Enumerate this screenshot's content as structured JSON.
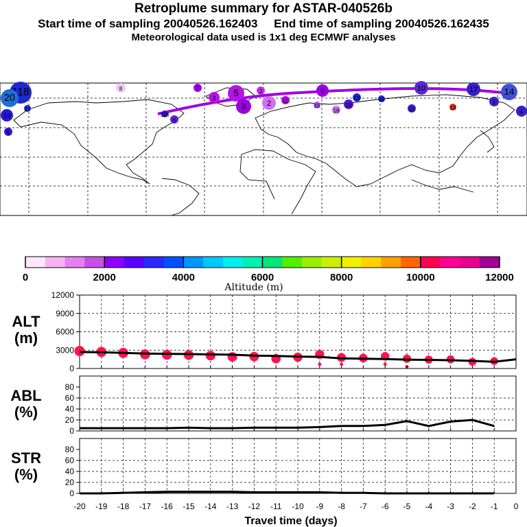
{
  "titles": {
    "main": "Retroplume summary for ASTAR-040526b",
    "start": "Start time of sampling 20040526.162403",
    "end": "End time of sampling 20040526.162435",
    "meteo": "Meteorological data used is 1x1 deg ECMWF analyses"
  },
  "map": {
    "plume_labels": [
      "118",
      "20",
      "16",
      "8",
      "7",
      "5",
      "3",
      "2",
      "1",
      "12",
      "10",
      "17",
      "14",
      "4",
      "6",
      "15",
      "19",
      "9",
      "11",
      "13"
    ]
  },
  "colorbar": {
    "label": "Altitude (m)",
    "ticks": [
      "0",
      "2000",
      "4000",
      "6000",
      "8000",
      "10000",
      "12000"
    ],
    "colors": [
      "#ffe6ff",
      "#f5b3f5",
      "#e680f0",
      "#c850e8",
      "#8c00ff",
      "#5a00ff",
      "#2828ff",
      "#0050ff",
      "#0096ff",
      "#00c8ff",
      "#00f0f0",
      "#00f0b4",
      "#00e678",
      "#50f000",
      "#96f000",
      "#c8f000",
      "#f0f000",
      "#ffd200",
      "#ffa000",
      "#ff6400",
      "#ff0050",
      "#ff0096",
      "#e6008c",
      "#a00096"
    ]
  },
  "chart_data": [
    {
      "type": "line",
      "panel": "ALT",
      "ylabel_line1": "ALT",
      "ylabel_line2": "(m)",
      "ylim": [
        0,
        12000
      ],
      "yticks": [
        "12000",
        "9000",
        "6000",
        "3000",
        "0"
      ],
      "x": [
        -20,
        -19,
        -18,
        -17,
        -16,
        -15,
        -14,
        -13,
        -12,
        -11,
        -10,
        -9,
        -8,
        -7,
        -6,
        -5,
        -4,
        -3,
        -2,
        -1,
        0
      ],
      "values": [
        2700,
        2650,
        2550,
        2450,
        2400,
        2350,
        2300,
        2250,
        2100,
        2050,
        1950,
        1900,
        1650,
        1600,
        1550,
        1450,
        1400,
        1350,
        1250,
        1100,
        1500
      ],
      "cluster_points": [
        {
          "x": -20,
          "y": 2850
        },
        {
          "x": -19,
          "y": 2700
        },
        {
          "x": -18,
          "y": 2550
        },
        {
          "x": -17,
          "y": 2300
        },
        {
          "x": -16,
          "y": 2250
        },
        {
          "x": -15,
          "y": 2200
        },
        {
          "x": -14,
          "y": 2100
        },
        {
          "x": -13,
          "y": 1900
        },
        {
          "x": -12,
          "y": 1950
        },
        {
          "x": -11,
          "y": 1600
        },
        {
          "x": -10,
          "y": 1850
        },
        {
          "x": -9,
          "y": 2300
        },
        {
          "x": -9,
          "y": 700
        },
        {
          "x": -8,
          "y": 1800
        },
        {
          "x": -8,
          "y": 700
        },
        {
          "x": -7,
          "y": 1700
        },
        {
          "x": -6,
          "y": 2000
        },
        {
          "x": -6,
          "y": 700
        },
        {
          "x": -5,
          "y": 1600
        },
        {
          "x": -5,
          "y": 300
        },
        {
          "x": -4,
          "y": 1450
        },
        {
          "x": -3,
          "y": 1500
        },
        {
          "x": -2,
          "y": 1100
        },
        {
          "x": -1,
          "y": 1200
        }
      ]
    },
    {
      "type": "line",
      "panel": "ABL",
      "ylabel_line1": "ABL",
      "ylabel_line2": "(%)",
      "ylim": [
        0,
        100
      ],
      "yticks": [
        "80",
        "60",
        "40",
        "20",
        "0"
      ],
      "x": [
        -20,
        -19,
        -18,
        -17,
        -16,
        -15,
        -14,
        -13,
        -12,
        -11,
        -10,
        -9,
        -8,
        -7,
        -6,
        -5,
        -4,
        -3,
        -2,
        -1
      ],
      "values": [
        5,
        5,
        5,
        5,
        5,
        6,
        5,
        5,
        6,
        6,
        6,
        7,
        9,
        9,
        11,
        18,
        9,
        17,
        20,
        9
      ]
    },
    {
      "type": "line",
      "panel": "STR",
      "ylabel_line1": "STR",
      "ylabel_line2": "(%)",
      "ylim": [
        0,
        100
      ],
      "yticks": [
        "80",
        "60",
        "40",
        "20",
        "0"
      ],
      "x": [
        -20,
        -19,
        -18,
        -17,
        -16,
        -15,
        -14,
        -13,
        -12,
        -11,
        -10,
        -9,
        -8,
        -7,
        -6,
        -5,
        -4,
        -3,
        -2,
        -1
      ],
      "values": [
        0,
        0,
        1,
        2,
        3,
        3,
        3,
        3,
        2,
        2,
        2,
        2,
        1,
        1,
        0,
        0,
        0,
        0,
        0,
        0
      ],
      "xlabel": "Travel time (days)",
      "xticks": [
        "-20",
        "-19",
        "-18",
        "-17",
        "-16",
        "-15",
        "-14",
        "-13",
        "-12",
        "-11",
        "-10",
        "-9",
        "-8",
        "-7",
        "-6",
        "-5",
        "-4",
        "-3",
        "-2",
        "-1",
        "0"
      ]
    }
  ]
}
